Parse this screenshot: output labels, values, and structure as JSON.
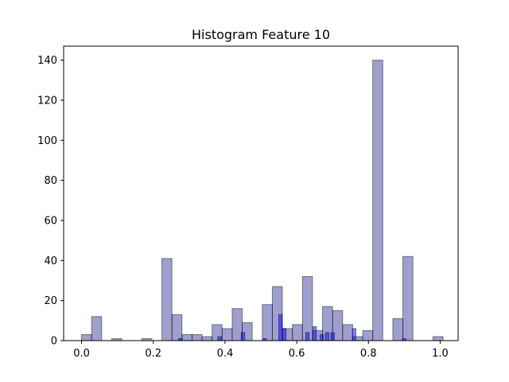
{
  "chart_data": {
    "type": "bar",
    "title": "Histogram Feature 10",
    "xlabel": "",
    "ylabel": "",
    "xlim": [
      -0.05,
      1.05
    ],
    "ylim": [
      0,
      147
    ],
    "xticks": [
      0.0,
      0.2,
      0.4,
      0.6,
      0.8,
      1.0
    ],
    "xtick_labels": [
      "0.0",
      "0.2",
      "0.4",
      "0.6",
      "0.8",
      "1.0"
    ],
    "yticks": [
      0,
      20,
      40,
      60,
      80,
      100,
      120,
      140
    ],
    "ytick_labels": [
      "0",
      "20",
      "40",
      "60",
      "80",
      "100",
      "120",
      "140"
    ],
    "grid": false,
    "series": [
      {
        "color": "#3f3f9f",
        "alpha": 0.5,
        "bins": [
          {
            "x0": 0.0,
            "x1": 0.028,
            "count": 3
          },
          {
            "x0": 0.028,
            "x1": 0.056,
            "count": 12
          },
          {
            "x0": 0.084,
            "x1": 0.112,
            "count": 1
          },
          {
            "x0": 0.168,
            "x1": 0.196,
            "count": 1
          },
          {
            "x0": 0.224,
            "x1": 0.252,
            "count": 41
          },
          {
            "x0": 0.252,
            "x1": 0.28,
            "count": 13
          },
          {
            "x0": 0.28,
            "x1": 0.308,
            "count": 3
          },
          {
            "x0": 0.308,
            "x1": 0.336,
            "count": 3
          },
          {
            "x0": 0.336,
            "x1": 0.364,
            "count": 2
          },
          {
            "x0": 0.364,
            "x1": 0.392,
            "count": 8
          },
          {
            "x0": 0.392,
            "x1": 0.42,
            "count": 6
          },
          {
            "x0": 0.42,
            "x1": 0.448,
            "count": 16
          },
          {
            "x0": 0.448,
            "x1": 0.476,
            "count": 9
          },
          {
            "x0": 0.504,
            "x1": 0.532,
            "count": 18
          },
          {
            "x0": 0.532,
            "x1": 0.56,
            "count": 27
          },
          {
            "x0": 0.56,
            "x1": 0.588,
            "count": 6
          },
          {
            "x0": 0.588,
            "x1": 0.616,
            "count": 8
          },
          {
            "x0": 0.616,
            "x1": 0.644,
            "count": 32
          },
          {
            "x0": 0.644,
            "x1": 0.672,
            "count": 5
          },
          {
            "x0": 0.672,
            "x1": 0.7,
            "count": 17
          },
          {
            "x0": 0.7,
            "x1": 0.728,
            "count": 15
          },
          {
            "x0": 0.728,
            "x1": 0.756,
            "count": 8
          },
          {
            "x0": 0.756,
            "x1": 0.784,
            "count": 2
          },
          {
            "x0": 0.784,
            "x1": 0.812,
            "count": 5
          },
          {
            "x0": 0.812,
            "x1": 0.84,
            "count": 140
          },
          {
            "x0": 0.868,
            "x1": 0.896,
            "count": 11
          },
          {
            "x0": 0.896,
            "x1": 0.924,
            "count": 42
          },
          {
            "x0": 0.98,
            "x1": 1.008,
            "count": 2
          }
        ]
      },
      {
        "color": "#0000ff",
        "alpha": 0.5,
        "bins": [
          {
            "x0": 0.27,
            "x1": 0.28,
            "count": 1
          },
          {
            "x0": 0.38,
            "x1": 0.39,
            "count": 2
          },
          {
            "x0": 0.445,
            "x1": 0.455,
            "count": 4
          },
          {
            "x0": 0.505,
            "x1": 0.515,
            "count": 1
          },
          {
            "x0": 0.55,
            "x1": 0.56,
            "count": 13
          },
          {
            "x0": 0.56,
            "x1": 0.57,
            "count": 6
          },
          {
            "x0": 0.625,
            "x1": 0.635,
            "count": 4
          },
          {
            "x0": 0.645,
            "x1": 0.655,
            "count": 7
          },
          {
            "x0": 0.665,
            "x1": 0.675,
            "count": 3
          },
          {
            "x0": 0.68,
            "x1": 0.69,
            "count": 4
          },
          {
            "x0": 0.695,
            "x1": 0.705,
            "count": 4
          },
          {
            "x0": 0.755,
            "x1": 0.765,
            "count": 6
          },
          {
            "x0": 0.895,
            "x1": 0.905,
            "count": 1
          }
        ]
      }
    ]
  }
}
